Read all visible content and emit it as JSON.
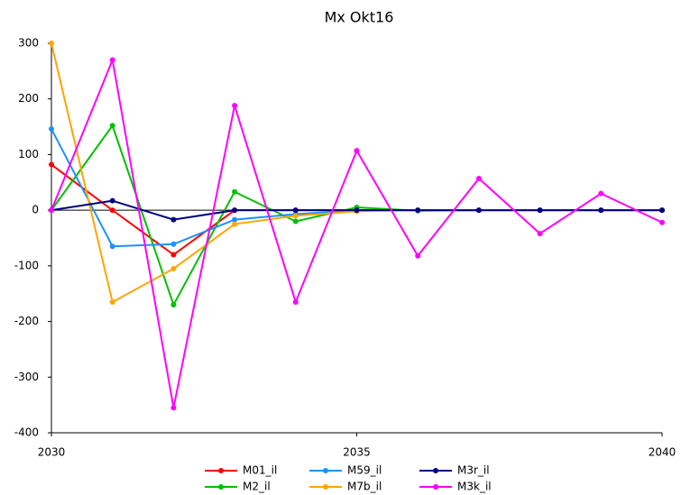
{
  "chart_data": {
    "type": "line",
    "title": "Mx Okt16",
    "x": [
      2030,
      2031,
      2032,
      2033,
      2034,
      2035,
      2036,
      2037,
      2038,
      2039,
      2040
    ],
    "xlim": [
      2030,
      2040
    ],
    "xticks": [
      2030,
      2035,
      2040
    ],
    "ylim": [
      -400,
      300
    ],
    "yticks": [
      -400,
      -300,
      -200,
      -100,
      0,
      100,
      200,
      300
    ],
    "grid": false,
    "legend": "bottom",
    "series": [
      {
        "name": "M01_il",
        "color": "#ff0000",
        "values": [
          82,
          0,
          -80,
          0,
          0,
          0,
          0,
          0,
          0,
          0,
          0
        ]
      },
      {
        "name": "M2_il",
        "color": "#00c000",
        "values": [
          0,
          152,
          -170,
          33,
          -20,
          5,
          -1,
          0,
          0,
          0,
          0
        ]
      },
      {
        "name": "M59_il",
        "color": "#1e90ff",
        "values": [
          146,
          -65,
          -61,
          -17,
          -7,
          0,
          0,
          0,
          0,
          0,
          0
        ]
      },
      {
        "name": "M7b_il",
        "color": "#ffa500",
        "values": [
          300,
          -165,
          -105,
          -25,
          -10,
          -2,
          0,
          0,
          0,
          0,
          0
        ]
      },
      {
        "name": "M3r_il",
        "color": "#000080",
        "values": [
          0,
          17,
          -17,
          0,
          0,
          0,
          0,
          0,
          0,
          0,
          0
        ]
      },
      {
        "name": "M3k_il",
        "color": "#ff00ff",
        "values": [
          0,
          270,
          -355,
          188,
          -165,
          107,
          -82,
          57,
          -42,
          30,
          -22
        ]
      }
    ]
  }
}
